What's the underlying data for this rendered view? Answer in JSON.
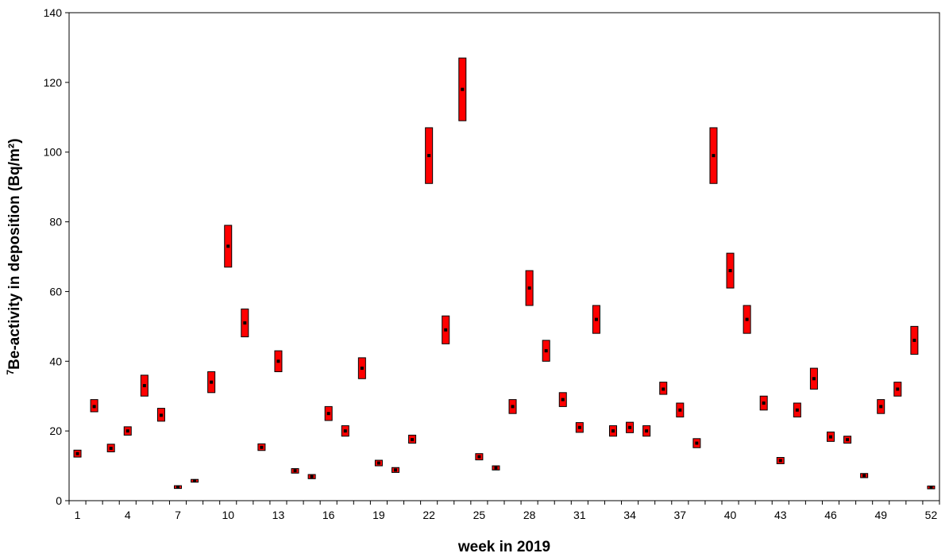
{
  "chart_data": {
    "type": "scatter",
    "title": "",
    "xlabel": "week in 2019",
    "ylabel_superscript": "7",
    "ylabel": "Be-activity in deposition (Bq/m²)",
    "ylim": [
      0,
      140
    ],
    "yticks": [
      0,
      20,
      40,
      60,
      80,
      100,
      120,
      140
    ],
    "xlim": [
      1,
      52
    ],
    "xticks": [
      1,
      4,
      7,
      10,
      13,
      16,
      19,
      22,
      25,
      28,
      31,
      34,
      37,
      40,
      43,
      46,
      49,
      52
    ],
    "grid": false,
    "legend": "none",
    "colors": {
      "range_fill": "#ff0000",
      "range_stroke": "#000000",
      "marker": "#000000"
    },
    "series": [
      {
        "weeks": [
          1,
          2,
          3,
          4,
          5,
          6,
          7,
          8,
          9,
          10,
          11,
          12,
          13,
          14,
          15,
          16,
          17,
          18,
          19,
          20,
          21,
          22,
          23,
          24,
          25,
          26,
          27,
          28,
          29,
          30,
          31,
          32,
          33,
          34,
          35,
          36,
          37,
          38,
          39,
          40,
          41,
          42,
          43,
          44,
          45,
          46,
          47,
          48,
          49,
          50,
          51,
          52
        ],
        "values": [
          13.5,
          27,
          15,
          20,
          33,
          24.5,
          3.9,
          5.7,
          34,
          73,
          51,
          15.3,
          40,
          8.6,
          6.9,
          25,
          20,
          38,
          10.8,
          8.8,
          17.5,
          99,
          49,
          118,
          12.6,
          9.4,
          27,
          61,
          43,
          29,
          21,
          52,
          20,
          21,
          20,
          32,
          26,
          16.5,
          99,
          66,
          52,
          28,
          11.5,
          26,
          35,
          18.3,
          17.5,
          7.2,
          27,
          32,
          46,
          3.8
        ],
        "lower": [
          12.5,
          25.5,
          14,
          18.8,
          30,
          22.8,
          3.5,
          5.3,
          31,
          67,
          47,
          14.4,
          37,
          7.9,
          6.3,
          23,
          18.5,
          35,
          10,
          8.1,
          16.5,
          91,
          45,
          109,
          11.7,
          8.8,
          25,
          56,
          40,
          27,
          19.6,
          48,
          18.5,
          19.5,
          18.5,
          30.5,
          24,
          15.2,
          91,
          61,
          48,
          26,
          10.6,
          24,
          32,
          17,
          16.5,
          6.6,
          25,
          30,
          42,
          3.4
        ],
        "upper": [
          14.5,
          29,
          16.2,
          21.2,
          36,
          26.5,
          4.3,
          6.1,
          37,
          79,
          55,
          16.3,
          43,
          9.2,
          7.5,
          27,
          21.5,
          41,
          11.6,
          9.5,
          18.8,
          107,
          53,
          127,
          13.5,
          10,
          29,
          66,
          46,
          31,
          22.4,
          56,
          21.5,
          22.5,
          21.5,
          34,
          28,
          17.8,
          107,
          71,
          56,
          30,
          12.4,
          28,
          38,
          19.7,
          18.5,
          7.8,
          29,
          34,
          50,
          4.2
        ]
      }
    ]
  }
}
